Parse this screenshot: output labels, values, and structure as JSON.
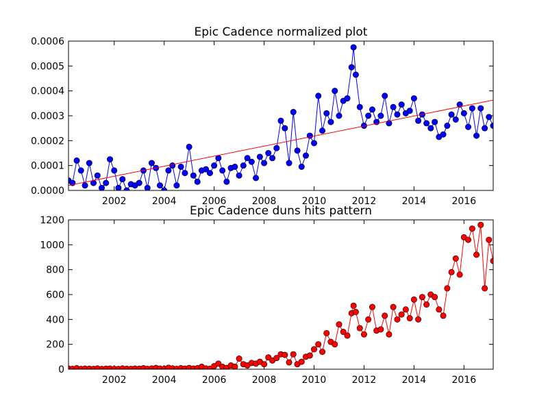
{
  "chart_data": [
    {
      "type": "line",
      "title": "Epic Cadence normalized plot",
      "x": [
        2000.17,
        2000.33,
        2000.5,
        2000.67,
        2000.83,
        2001,
        2001.17,
        2001.33,
        2001.5,
        2001.67,
        2001.83,
        2002,
        2002.17,
        2002.33,
        2002.5,
        2002.67,
        2002.83,
        2003,
        2003.17,
        2003.33,
        2003.5,
        2003.67,
        2003.83,
        2004,
        2004.17,
        2004.33,
        2004.5,
        2004.67,
        2004.83,
        2005,
        2005.17,
        2005.33,
        2005.5,
        2005.67,
        2005.83,
        2006,
        2006.17,
        2006.33,
        2006.5,
        2006.67,
        2006.83,
        2007,
        2007.17,
        2007.33,
        2007.5,
        2007.67,
        2007.83,
        2008,
        2008.17,
        2008.33,
        2008.5,
        2008.67,
        2008.83,
        2009,
        2009.17,
        2009.33,
        2009.5,
        2009.67,
        2009.83,
        2010,
        2010.17,
        2010.33,
        2010.5,
        2010.67,
        2010.83,
        2011,
        2011.17,
        2011.33,
        2011.5,
        2011.58,
        2011.67,
        2011.83,
        2012,
        2012.17,
        2012.33,
        2012.5,
        2012.67,
        2012.83,
        2013,
        2013.17,
        2013.33,
        2013.5,
        2013.67,
        2013.83,
        2014,
        2014.17,
        2014.33,
        2014.5,
        2014.67,
        2014.83,
        2015,
        2015.17,
        2015.33,
        2015.5,
        2015.67,
        2015.83,
        2016,
        2016.17,
        2016.33,
        2016.5,
        2016.67,
        2016.83,
        2017,
        2017.17
      ],
      "series": [
        {
          "color": "#0000ff",
          "values": [
            4e-05,
            3e-05,
            0.00012,
            8e-05,
            2e-05,
            0.00011,
            3e-05,
            6e-05,
            1e-05,
            3e-05,
            0.000125,
            8e-05,
            1e-05,
            4.5e-05,
            0,
            2.5e-05,
            2e-05,
            3e-05,
            8e-05,
            1e-05,
            0.00011,
            9e-05,
            2e-05,
            0,
            8e-05,
            0.0001,
            2e-05,
            9.5e-05,
            7e-05,
            0.000175,
            6e-05,
            3.5e-05,
            8e-05,
            8.5e-05,
            7e-05,
            0.0001,
            0.00013,
            8e-05,
            3.5e-05,
            9e-05,
            9.5e-05,
            6e-05,
            0.0001,
            0.00013,
            0.000115,
            5e-05,
            0.000135,
            0.00011,
            0.00015,
            0.00013,
            0.00017,
            0.00028,
            0.00025,
            0.00011,
            0.000315,
            0.00016,
            9.5e-05,
            0.00014,
            0.00022,
            0.00019,
            0.00038,
            0.00024,
            0.00031,
            0.000275,
            0.0004,
            0.0003,
            0.00036,
            0.00037,
            0.000495,
            0.000575,
            0.000465,
            0.000335,
            0.00026,
            0.0003,
            0.000325,
            0.000275,
            0.0003,
            0.00038,
            0.00027,
            0.000335,
            0.000305,
            0.000345,
            0.00031,
            0.00032,
            0.00037,
            0.00028,
            0.000305,
            0.00027,
            0.00025,
            0.000275,
            0.000215,
            0.000225,
            0.00026,
            0.000305,
            0.000285,
            0.000345,
            0.00031,
            0.000255,
            0.00033,
            0.00022,
            0.00033,
            0.00025,
            0.000295,
            0.00026
          ]
        }
      ],
      "trend": {
        "color": "#ff0000",
        "x": [
          2000.17,
          2017.17
        ],
        "values": [
          2e-05,
          0.000363
        ]
      },
      "xlim": [
        2000.17,
        2017.17
      ],
      "xticks": [
        2002,
        2004,
        2006,
        2008,
        2010,
        2012,
        2014,
        2016
      ],
      "ylim": [
        0,
        0.0006
      ],
      "yticks": [
        {
          "value": 0,
          "label": "0.0000"
        },
        0.0001,
        0.0002,
        0.0003,
        0.0004,
        0.0005,
        0.0006
      ]
    },
    {
      "type": "line",
      "title": "Epic Cadence duns hits pattern",
      "x": [
        2000.17,
        2000.33,
        2000.5,
        2000.67,
        2000.83,
        2001,
        2001.17,
        2001.33,
        2001.5,
        2001.67,
        2001.83,
        2002,
        2002.17,
        2002.33,
        2002.5,
        2002.67,
        2002.83,
        2003,
        2003.17,
        2003.33,
        2003.5,
        2003.67,
        2003.83,
        2004,
        2004.17,
        2004.33,
        2004.5,
        2004.67,
        2004.83,
        2005,
        2005.17,
        2005.33,
        2005.5,
        2005.67,
        2005.83,
        2006,
        2006.17,
        2006.33,
        2006.5,
        2006.67,
        2006.83,
        2007,
        2007.17,
        2007.33,
        2007.5,
        2007.67,
        2007.83,
        2008,
        2008.17,
        2008.33,
        2008.5,
        2008.67,
        2008.83,
        2009,
        2009.17,
        2009.33,
        2009.5,
        2009.67,
        2009.83,
        2010,
        2010.17,
        2010.33,
        2010.5,
        2010.67,
        2010.83,
        2011,
        2011.17,
        2011.33,
        2011.5,
        2011.58,
        2011.67,
        2011.83,
        2012,
        2012.17,
        2012.33,
        2012.5,
        2012.67,
        2012.83,
        2013,
        2013.17,
        2013.33,
        2013.5,
        2013.67,
        2013.83,
        2014,
        2014.17,
        2014.33,
        2014.5,
        2014.67,
        2014.83,
        2015,
        2015.17,
        2015.33,
        2015.5,
        2015.67,
        2015.83,
        2016,
        2016.17,
        2016.33,
        2016.5,
        2016.67,
        2016.83,
        2017,
        2017.17
      ],
      "series": [
        {
          "color": "#ff0000",
          "values": [
            5,
            3,
            8,
            2,
            5,
            4,
            3,
            6,
            2,
            4,
            5,
            3,
            2,
            6,
            4,
            3,
            5,
            4,
            8,
            3,
            6,
            10,
            5,
            4,
            12,
            7,
            3,
            8,
            5,
            10,
            5,
            8,
            20,
            6,
            4,
            25,
            45,
            20,
            10,
            30,
            20,
            85,
            40,
            30,
            50,
            45,
            60,
            40,
            95,
            70,
            90,
            120,
            115,
            55,
            120,
            40,
            60,
            100,
            110,
            160,
            200,
            140,
            290,
            220,
            200,
            360,
            300,
            270,
            450,
            510,
            460,
            330,
            280,
            400,
            500,
            310,
            320,
            430,
            280,
            500,
            400,
            440,
            480,
            410,
            560,
            400,
            580,
            520,
            600,
            580,
            480,
            430,
            650,
            780,
            890,
            760,
            1060,
            1040,
            1130,
            920,
            1160,
            650,
            1040,
            870
          ]
        }
      ],
      "xlim": [
        2000.17,
        2017.17
      ],
      "xticks": [
        2002,
        2004,
        2006,
        2008,
        2010,
        2012,
        2014,
        2016
      ],
      "ylim": [
        0,
        1200
      ],
      "yticks": [
        0,
        200,
        400,
        600,
        800,
        1000,
        1200
      ]
    }
  ]
}
